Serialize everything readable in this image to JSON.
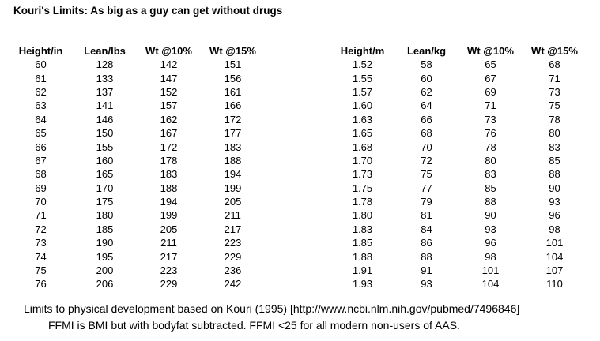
{
  "title": "Kouri's Limits: As big as a guy can get without drugs",
  "tables": {
    "imperial": {
      "headers": [
        "Height/in",
        "Lean/lbs",
        "Wt @10%",
        "Wt @15%"
      ],
      "rows": [
        [
          "60",
          "128",
          "142",
          "151"
        ],
        [
          "61",
          "133",
          "147",
          "156"
        ],
        [
          "62",
          "137",
          "152",
          "161"
        ],
        [
          "63",
          "141",
          "157",
          "166"
        ],
        [
          "64",
          "146",
          "162",
          "172"
        ],
        [
          "65",
          "150",
          "167",
          "177"
        ],
        [
          "66",
          "155",
          "172",
          "183"
        ],
        [
          "67",
          "160",
          "178",
          "188"
        ],
        [
          "68",
          "165",
          "183",
          "194"
        ],
        [
          "69",
          "170",
          "188",
          "199"
        ],
        [
          "70",
          "175",
          "194",
          "205"
        ],
        [
          "71",
          "180",
          "199",
          "211"
        ],
        [
          "72",
          "185",
          "205",
          "217"
        ],
        [
          "73",
          "190",
          "211",
          "223"
        ],
        [
          "74",
          "195",
          "217",
          "229"
        ],
        [
          "75",
          "200",
          "223",
          "236"
        ],
        [
          "76",
          "206",
          "229",
          "242"
        ]
      ]
    },
    "metric": {
      "headers": [
        "Height/m",
        "Lean/kg",
        "Wt @10%",
        "Wt @15%"
      ],
      "rows": [
        [
          "1.52",
          "58",
          "65",
          "68"
        ],
        [
          "1.55",
          "60",
          "67",
          "71"
        ],
        [
          "1.57",
          "62",
          "69",
          "73"
        ],
        [
          "1.60",
          "64",
          "71",
          "75"
        ],
        [
          "1.63",
          "66",
          "73",
          "78"
        ],
        [
          "1.65",
          "68",
          "76",
          "80"
        ],
        [
          "1.68",
          "70",
          "78",
          "83"
        ],
        [
          "1.70",
          "72",
          "80",
          "85"
        ],
        [
          "1.73",
          "75",
          "83",
          "88"
        ],
        [
          "1.75",
          "77",
          "85",
          "90"
        ],
        [
          "1.78",
          "79",
          "88",
          "93"
        ],
        [
          "1.80",
          "81",
          "90",
          "96"
        ],
        [
          "1.83",
          "84",
          "93",
          "98"
        ],
        [
          "1.85",
          "86",
          "96",
          "101"
        ],
        [
          "1.88",
          "88",
          "98",
          "104"
        ],
        [
          "1.91",
          "91",
          "101",
          "107"
        ],
        [
          "1.93",
          "93",
          "104",
          "110"
        ]
      ]
    }
  },
  "footnotes": {
    "line1": "Limits to physical development based on Kouri (1995) [http://www.ncbi.nlm.nih.gov/pubmed/7496846]",
    "line2": "FFMI is BMI but with bodyfat subtracted. FFMI <25 for all modern non-users of AAS."
  },
  "colors": {
    "background": "#ffffff",
    "text": "#000000"
  }
}
